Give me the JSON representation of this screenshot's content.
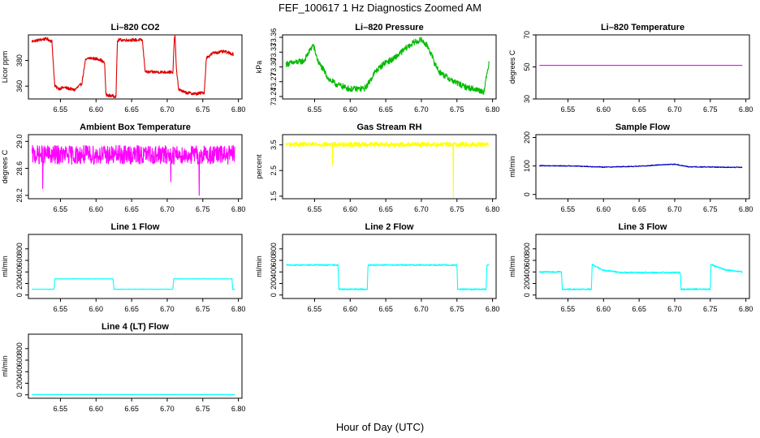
{
  "figure": {
    "title": "FEF_100617  1 Hz Diagnostics Zoomed AM",
    "xlabel": "Hour of Day (UTC)"
  },
  "chart_data": [
    {
      "type": "line",
      "title": "Li–820 CO2",
      "ylabel": "Licor ppm",
      "color": "#dd0000",
      "xlim": [
        6.505,
        6.805
      ],
      "ylim": [
        350,
        400
      ],
      "xticks": [
        "6.55",
        "6.60",
        "6.65",
        "6.70",
        "6.75",
        "6.80"
      ],
      "yticks": [
        "360",
        "380"
      ],
      "noise": 1.2,
      "x": [
        6.51,
        6.53,
        6.538,
        6.542,
        6.548,
        6.555,
        6.57,
        6.58,
        6.585,
        6.59,
        6.605,
        6.612,
        6.614,
        6.628,
        6.63,
        6.632,
        6.665,
        6.669,
        6.671,
        6.705,
        6.708,
        6.71,
        6.711,
        6.713,
        6.716,
        6.718,
        6.725,
        6.74,
        6.752,
        6.755,
        6.765,
        6.78,
        6.793
      ],
      "y": [
        395,
        397,
        395,
        360,
        358,
        359,
        357,
        362,
        380,
        382,
        381,
        378,
        353,
        352,
        395,
        396,
        396,
        372,
        371,
        371,
        370,
        398,
        399,
        372,
        358,
        357,
        355,
        354,
        355,
        382,
        386,
        387,
        385
      ]
    },
    {
      "type": "line",
      "title": "Li–820 Pressure",
      "ylabel": "kPa",
      "color": "#00bb00",
      "xlim": [
        6.505,
        6.805
      ],
      "ylim": [
        73.235,
        73.365
      ],
      "xticks": [
        "6.55",
        "6.60",
        "6.65",
        "6.70",
        "6.75",
        "6.80"
      ],
      "yticks": [
        "73.24",
        "73.27",
        "73.30",
        "73.33",
        "73.36"
      ],
      "noise": 0.006,
      "x": [
        6.51,
        6.535,
        6.548,
        6.555,
        6.562,
        6.57,
        6.58,
        6.59,
        6.6,
        6.62,
        6.625,
        6.635,
        6.65,
        6.66,
        6.672,
        6.68,
        6.69,
        6.7,
        6.71,
        6.718,
        6.725,
        6.74,
        6.76,
        6.775,
        6.788,
        6.795
      ],
      "y": [
        73.306,
        73.312,
        73.345,
        73.31,
        73.295,
        73.275,
        73.265,
        73.26,
        73.255,
        73.256,
        73.265,
        73.29,
        73.31,
        73.315,
        73.33,
        73.34,
        73.35,
        73.355,
        73.34,
        73.31,
        73.29,
        73.275,
        73.26,
        73.255,
        73.25,
        73.31
      ]
    },
    {
      "type": "line",
      "title": "Li–820 Temperature",
      "ylabel": "degrees C",
      "color": "#ff00ff",
      "xlim": [
        6.505,
        6.805
      ],
      "ylim": [
        30,
        70
      ],
      "xticks": [
        "6.55",
        "6.60",
        "6.65",
        "6.70",
        "6.75",
        "6.80"
      ],
      "yticks": [
        "30",
        "50",
        "70"
      ],
      "noise": 0,
      "x": [
        6.51,
        6.795
      ],
      "y": [
        51,
        51
      ]
    },
    {
      "type": "line",
      "title": "Ambient Box Temperature",
      "ylabel": "degrees C",
      "color": "#ff00ff",
      "xlim": [
        6.505,
        6.805
      ],
      "ylim": [
        28.15,
        29.1
      ],
      "xticks": [
        "6.55",
        "6.60",
        "6.65",
        "6.70",
        "6.75",
        "6.80"
      ],
      "yticks": [
        "28.2",
        "28.6",
        "29.0"
      ],
      "noise": 0.14,
      "x": [
        6.51,
        6.795
      ],
      "y": [
        28.8,
        28.8
      ],
      "spikes": [
        [
          6.525,
          28.3
        ],
        [
          6.705,
          28.4
        ],
        [
          6.745,
          28.2
        ]
      ]
    },
    {
      "type": "line",
      "title": "Gas Stream RH",
      "ylabel": "percent",
      "color": "#ffff00",
      "xlim": [
        6.505,
        6.805
      ],
      "ylim": [
        1.4,
        3.9
      ],
      "xticks": [
        "6.55",
        "6.60",
        "6.65",
        "6.70",
        "6.75",
        "6.80"
      ],
      "yticks": [
        "1.5",
        "2.5",
        "3.5"
      ],
      "noise": 0.09,
      "x": [
        6.51,
        6.795
      ],
      "y": [
        3.52,
        3.52
      ],
      "spikes": [
        [
          6.575,
          2.7
        ],
        [
          6.745,
          1.45
        ]
      ]
    },
    {
      "type": "line",
      "title": "Sample Flow",
      "ylabel": "ml/min",
      "color": "#0000bb",
      "xlim": [
        6.505,
        6.805
      ],
      "ylim": [
        -15,
        210
      ],
      "xticks": [
        "6.55",
        "6.60",
        "6.65",
        "6.70",
        "6.75",
        "6.80"
      ],
      "yticks": [
        "0",
        "100",
        "200"
      ],
      "noise": 1.5,
      "x": [
        6.51,
        6.56,
        6.6,
        6.65,
        6.68,
        6.7,
        6.72,
        6.76,
        6.795
      ],
      "y": [
        101,
        100,
        96,
        99,
        104,
        106,
        97,
        96,
        95
      ]
    },
    {
      "type": "line",
      "title": "Line 1 Flow",
      "ylabel": "ml/min",
      "color": "#00ffff",
      "xlim": [
        6.505,
        6.805
      ],
      "ylim": [
        -60,
        1050
      ],
      "xticks": [
        "6.55",
        "6.60",
        "6.65",
        "6.70",
        "6.75",
        "6.80"
      ],
      "yticks": [
        "0",
        "200",
        "400",
        "600",
        "800"
      ],
      "noise": 4,
      "x": [
        6.51,
        6.541,
        6.542,
        6.624,
        6.625,
        6.708,
        6.709,
        6.791,
        6.792,
        6.795
      ],
      "y": [
        100,
        100,
        280,
        280,
        100,
        100,
        280,
        280,
        100,
        100
      ]
    },
    {
      "type": "line",
      "title": "Line 2 Flow",
      "ylabel": "ml/min",
      "color": "#00ffff",
      "xlim": [
        6.505,
        6.805
      ],
      "ylim": [
        -60,
        1050
      ],
      "xticks": [
        "6.55",
        "6.60",
        "6.65",
        "6.70",
        "6.75",
        "6.80"
      ],
      "yticks": [
        "0",
        "200",
        "400",
        "600",
        "800"
      ],
      "noise": 12,
      "x": [
        6.51,
        6.583,
        6.584,
        6.624,
        6.625,
        6.75,
        6.751,
        6.791,
        6.792,
        6.795
      ],
      "y": [
        520,
        520,
        100,
        100,
        520,
        520,
        100,
        100,
        520,
        520
      ]
    },
    {
      "type": "line",
      "title": "Line 3 Flow",
      "ylabel": "ml/min",
      "color": "#00ffff",
      "xlim": [
        6.505,
        6.805
      ],
      "ylim": [
        -60,
        1050
      ],
      "xticks": [
        "6.55",
        "6.60",
        "6.65",
        "6.70",
        "6.75",
        "6.80"
      ],
      "yticks": [
        "0",
        "200",
        "400",
        "600",
        "800"
      ],
      "noise": 12,
      "x": [
        6.51,
        6.541,
        6.542,
        6.583,
        6.584,
        6.6,
        6.625,
        6.708,
        6.709,
        6.75,
        6.751,
        6.77,
        6.795
      ],
      "y": [
        400,
        400,
        100,
        100,
        530,
        430,
        390,
        390,
        100,
        100,
        530,
        440,
        400
      ]
    },
    {
      "type": "line",
      "title": "Line 4 (LT) Flow",
      "ylabel": "ml/min",
      "color": "#00ffff",
      "xlim": [
        6.505,
        6.805
      ],
      "ylim": [
        -60,
        1050
      ],
      "xticks": [
        "6.55",
        "6.60",
        "6.65",
        "6.70",
        "6.75",
        "6.80"
      ],
      "yticks": [
        "0",
        "200",
        "400",
        "600",
        "800"
      ],
      "noise": 2,
      "x": [
        6.51,
        6.795
      ],
      "y": [
        5,
        5
      ]
    }
  ]
}
